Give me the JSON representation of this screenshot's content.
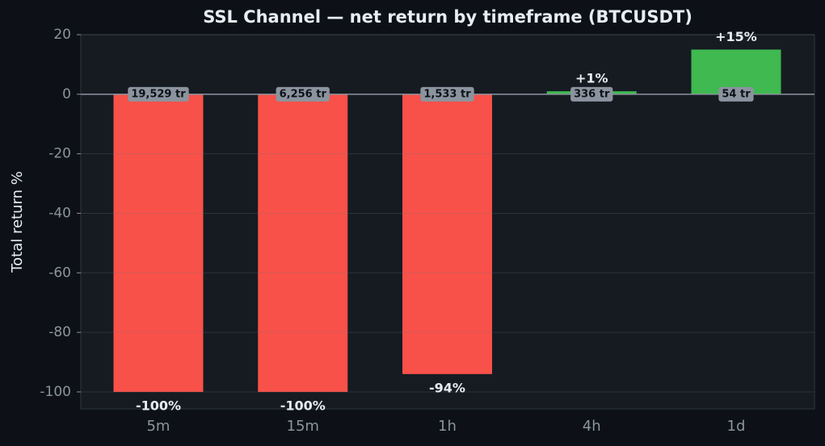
{
  "chart_data": {
    "type": "bar",
    "title": "SSL Channel — net return by timeframe (BTCUSDT)",
    "y_label": "Total return %",
    "categories": [
      "5m",
      "15m",
      "1h",
      "4h",
      "1d"
    ],
    "values": [
      -100,
      -100,
      -94,
      1,
      15
    ],
    "value_labels": [
      "-100%",
      "-100%",
      "-94%",
      "+1%",
      "+15%"
    ],
    "trade_labels": [
      "19,529 tr",
      "6,256 tr",
      "1,533 tr",
      "336 tr",
      "54 tr"
    ],
    "colors": [
      "#f85149",
      "#f85149",
      "#f85149",
      "#3fb950",
      "#3fb950"
    ],
    "ylim": [
      -105.7,
      20
    ],
    "yticks": [
      20,
      0,
      -20,
      -40,
      -60,
      -80,
      -100
    ],
    "grid": true
  }
}
